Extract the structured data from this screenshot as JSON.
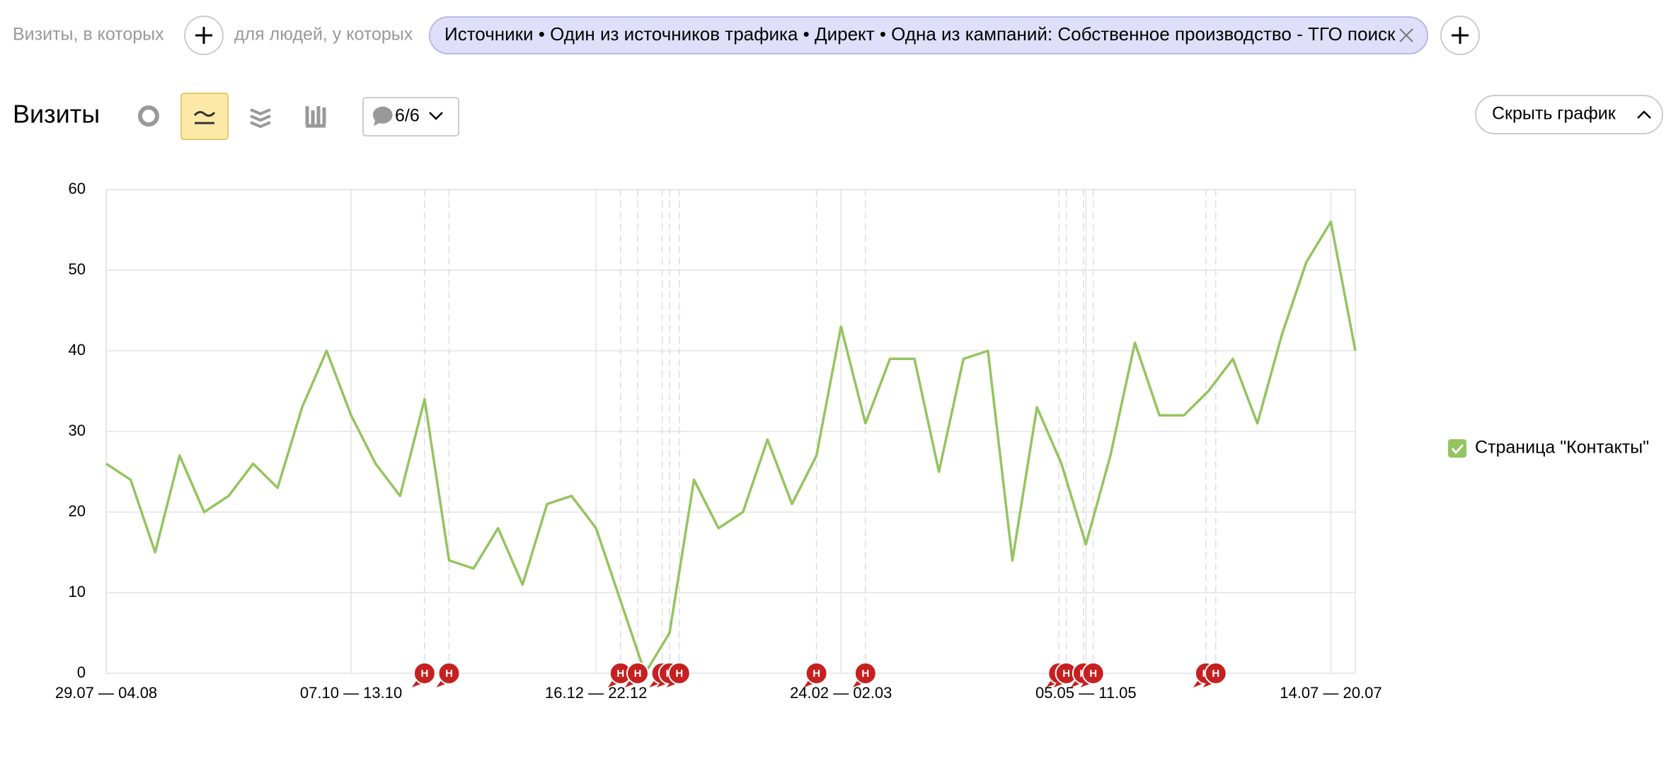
{
  "filters": {
    "visits_label": "Визиты, в которых",
    "people_label": "для людей, у которых",
    "chip": "Источники • Один из источников трафика • Директ • Одна из кампаний: Собственное производство - ТГО поиск"
  },
  "toolbar": {
    "title": "Визиты",
    "notes_count": "6/6",
    "hide_button": "Скрыть график"
  },
  "chart_data": {
    "type": "line",
    "categories": [
      "29.07 — 04.08",
      null,
      null,
      null,
      null,
      null,
      null,
      null,
      null,
      null,
      "07.10 — 13.10",
      null,
      null,
      null,
      null,
      null,
      null,
      null,
      null,
      null,
      "16.12 — 22.12",
      null,
      null,
      null,
      null,
      null,
      null,
      null,
      null,
      null,
      "24.02 — 02.03",
      null,
      null,
      null,
      null,
      null,
      null,
      null,
      null,
      null,
      "05.05 — 11.05",
      null,
      null,
      null,
      null,
      null,
      null,
      null,
      null,
      null,
      "14.07 — 20.07",
      null
    ],
    "series": [
      {
        "name": "Страница \"Контакты\"",
        "color": "#94c45f",
        "values": [
          26,
          24,
          15,
          27,
          20,
          22,
          26,
          23,
          33,
          40,
          32,
          26,
          22,
          34,
          14,
          13,
          18,
          11,
          21,
          22,
          18,
          9,
          0,
          5,
          24,
          18,
          20,
          29,
          21,
          27,
          43,
          31,
          39,
          39,
          25,
          39,
          40,
          14,
          33,
          26,
          16,
          27,
          41,
          32,
          32,
          35,
          39,
          31,
          42,
          51,
          56,
          40
        ]
      }
    ],
    "ylim": [
      0,
      60
    ],
    "yticks": [
      0,
      10,
      20,
      30,
      40,
      50,
      60
    ],
    "grid": true,
    "annotations": [
      {
        "x": 13,
        "label": "Н"
      },
      {
        "x": 14,
        "label": "Н"
      },
      {
        "x": 21,
        "label": "Н"
      },
      {
        "x": 21.7,
        "label": "Н"
      },
      {
        "x": 22.7,
        "label": "Н"
      },
      {
        "x": 23,
        "label": "Н"
      },
      {
        "x": 23.4,
        "label": "Н"
      },
      {
        "x": 29,
        "label": "Н"
      },
      {
        "x": 31,
        "label": "Н"
      },
      {
        "x": 38.9,
        "label": "Н"
      },
      {
        "x": 39.2,
        "label": "Н"
      },
      {
        "x": 39.9,
        "label": "Н"
      },
      {
        "x": 40.3,
        "label": "Н"
      },
      {
        "x": 44.9,
        "label": "Н"
      },
      {
        "x": 45.3,
        "label": "Н"
      }
    ]
  }
}
